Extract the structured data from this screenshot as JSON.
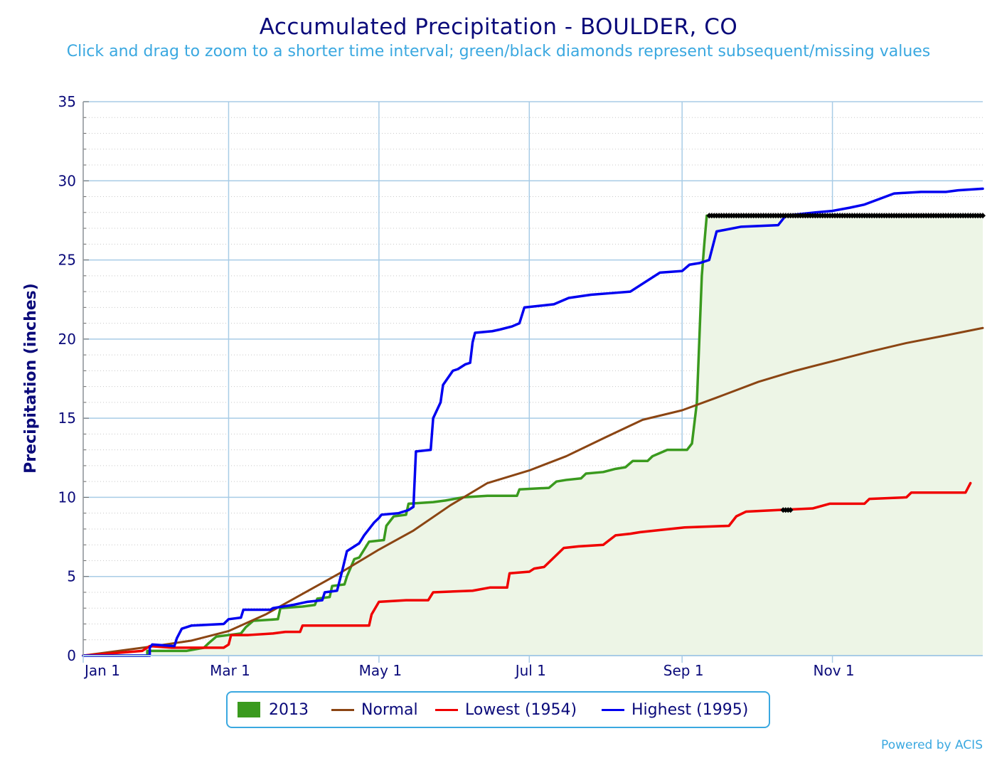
{
  "title": "Accumulated Precipitation - BOULDER, CO",
  "subtitle": "Click and drag to zoom to a shorter time interval; green/black diamonds represent subsequent/missing values",
  "credit": "Powered by ACIS",
  "colors": {
    "obs": "#3a9a1e",
    "obs_fill": "#edf5e6",
    "normal": "#8b4513",
    "lowest": "#f00000",
    "highest": "#0000f0",
    "grid": "#a8cce6",
    "minor_grid": "#c8c8c8",
    "axis_text": "#0a0a7a",
    "marker": "#000000"
  },
  "legend": [
    {
      "label": "2013",
      "key": "obs",
      "kind": "box"
    },
    {
      "label": "Normal",
      "key": "normal",
      "kind": "line"
    },
    {
      "label": "Lowest (1954)",
      "key": "lowest",
      "kind": "line"
    },
    {
      "label": "Highest (1995)",
      "key": "highest",
      "kind": "line"
    }
  ],
  "chart_data": {
    "type": "line",
    "title": "Accumulated Precipitation - BOULDER, CO",
    "xlabel": "",
    "ylabel": "Precipitation (inches)",
    "x_unit": "day of year",
    "xlim": [
      1,
      366
    ],
    "ylim": [
      0,
      35
    ],
    "x_ticks": [
      {
        "label": "Jan 1",
        "day": 1
      },
      {
        "label": "Mar 1",
        "day": 60
      },
      {
        "label": "May 1",
        "day": 121
      },
      {
        "label": "Jul 1",
        "day": 182
      },
      {
        "label": "Sep 1",
        "day": 244
      },
      {
        "label": "Nov 1",
        "day": 305
      }
    ],
    "y_ticks": [
      0,
      5,
      10,
      15,
      20,
      25,
      30,
      35
    ],
    "grid": true,
    "legend_position": "bottom-center",
    "series": [
      {
        "name": "2013",
        "key": "obs",
        "step": true,
        "fill": true,
        "points": [
          [
            1,
            0
          ],
          [
            27,
            0
          ],
          [
            27,
            0.3
          ],
          [
            43,
            0.3
          ],
          [
            50,
            0.5
          ],
          [
            52,
            0.8
          ],
          [
            55,
            1.2
          ],
          [
            60,
            1.3
          ],
          [
            65,
            1.4
          ],
          [
            67,
            1.8
          ],
          [
            70,
            2.2
          ],
          [
            80,
            2.3
          ],
          [
            81,
            3.0
          ],
          [
            90,
            3.1
          ],
          [
            95,
            3.2
          ],
          [
            96,
            3.6
          ],
          [
            101,
            3.7
          ],
          [
            102,
            4.4
          ],
          [
            107,
            4.5
          ],
          [
            108,
            5.0
          ],
          [
            111,
            6.1
          ],
          [
            113,
            6.2
          ],
          [
            117,
            7.2
          ],
          [
            123,
            7.3
          ],
          [
            124,
            8.2
          ],
          [
            127,
            8.8
          ],
          [
            132,
            8.9
          ],
          [
            133,
            9.6
          ],
          [
            143,
            9.7
          ],
          [
            148,
            9.8
          ],
          [
            155,
            10.0
          ],
          [
            165,
            10.1
          ],
          [
            177,
            10.1
          ],
          [
            178,
            10.5
          ],
          [
            190,
            10.6
          ],
          [
            193,
            11.0
          ],
          [
            197,
            11.1
          ],
          [
            203,
            11.2
          ],
          [
            205,
            11.5
          ],
          [
            212,
            11.6
          ],
          [
            217,
            11.8
          ],
          [
            221,
            11.9
          ],
          [
            224,
            12.3
          ],
          [
            230,
            12.3
          ],
          [
            232,
            12.6
          ],
          [
            235,
            12.8
          ],
          [
            238,
            13.0
          ],
          [
            246,
            13.0
          ],
          [
            248,
            13.4
          ],
          [
            250,
            16.0
          ],
          [
            251,
            20.0
          ],
          [
            252,
            24.0
          ],
          [
            253,
            26.0
          ],
          [
            254,
            27.8
          ]
        ]
      },
      {
        "name": "Normal",
        "key": "normal",
        "step": false,
        "points": [
          [
            1,
            0
          ],
          [
            30,
            0.6
          ],
          [
            45,
            0.95
          ],
          [
            60,
            1.55
          ],
          [
            75,
            2.6
          ],
          [
            90,
            3.9
          ],
          [
            105,
            5.2
          ],
          [
            121,
            6.7
          ],
          [
            135,
            7.9
          ],
          [
            150,
            9.5
          ],
          [
            165,
            10.9
          ],
          [
            182,
            11.7
          ],
          [
            197,
            12.6
          ],
          [
            213,
            13.8
          ],
          [
            228,
            14.9
          ],
          [
            244,
            15.5
          ],
          [
            258,
            16.3
          ],
          [
            275,
            17.3
          ],
          [
            290,
            18.0
          ],
          [
            305,
            18.6
          ],
          [
            320,
            19.2
          ],
          [
            335,
            19.75
          ],
          [
            350,
            20.2
          ],
          [
            366,
            20.7
          ]
        ]
      },
      {
        "name": "Lowest (1954)",
        "key": "lowest",
        "step": true,
        "points": [
          [
            1,
            0
          ],
          [
            25,
            0.3
          ],
          [
            28,
            0.6
          ],
          [
            37,
            0.5
          ],
          [
            58,
            0.5
          ],
          [
            60,
            0.7
          ],
          [
            61,
            1.3
          ],
          [
            68,
            1.3
          ],
          [
            78,
            1.4
          ],
          [
            83,
            1.5
          ],
          [
            89,
            1.5
          ],
          [
            90,
            1.9
          ],
          [
            117,
            1.9
          ],
          [
            118,
            2.6
          ],
          [
            121,
            3.4
          ],
          [
            132,
            3.5
          ],
          [
            141,
            3.5
          ],
          [
            143,
            4.0
          ],
          [
            159,
            4.1
          ],
          [
            166,
            4.3
          ],
          [
            173,
            4.3
          ],
          [
            174,
            5.2
          ],
          [
            182,
            5.3
          ],
          [
            184,
            5.5
          ],
          [
            188,
            5.6
          ],
          [
            192,
            6.2
          ],
          [
            196,
            6.8
          ],
          [
            202,
            6.9
          ],
          [
            212,
            7.0
          ],
          [
            217,
            7.6
          ],
          [
            223,
            7.7
          ],
          [
            227,
            7.8
          ],
          [
            245,
            8.1
          ],
          [
            263,
            8.2
          ],
          [
            266,
            8.8
          ],
          [
            270,
            9.1
          ],
          [
            283,
            9.2
          ],
          [
            297,
            9.3
          ],
          [
            304,
            9.6
          ],
          [
            318,
            9.6
          ],
          [
            320,
            9.9
          ],
          [
            335,
            10.0
          ],
          [
            337,
            10.3
          ],
          [
            359,
            10.3
          ],
          [
            361,
            10.9
          ]
        ]
      },
      {
        "name": "Highest (1995)",
        "key": "highest",
        "step": true,
        "points": [
          [
            1,
            0
          ],
          [
            28,
            0
          ],
          [
            28,
            0.5
          ],
          [
            29,
            0.7
          ],
          [
            38,
            0.6
          ],
          [
            39,
            1.1
          ],
          [
            41,
            1.7
          ],
          [
            45,
            1.9
          ],
          [
            58,
            2.0
          ],
          [
            60,
            2.3
          ],
          [
            65,
            2.4
          ],
          [
            66,
            2.9
          ],
          [
            77,
            2.9
          ],
          [
            78,
            3.0
          ],
          [
            82,
            3.1
          ],
          [
            86,
            3.2
          ],
          [
            92,
            3.4
          ],
          [
            98,
            3.5
          ],
          [
            99,
            4.0
          ],
          [
            104,
            4.1
          ],
          [
            106,
            5.3
          ],
          [
            108,
            6.6
          ],
          [
            113,
            7.1
          ],
          [
            115,
            7.6
          ],
          [
            119,
            8.4
          ],
          [
            121,
            8.7
          ],
          [
            122,
            8.9
          ],
          [
            129,
            9.0
          ],
          [
            133,
            9.2
          ],
          [
            135,
            9.4
          ],
          [
            136,
            12.9
          ],
          [
            142,
            13.0
          ],
          [
            143,
            15.0
          ],
          [
            146,
            16.0
          ],
          [
            147,
            17.1
          ],
          [
            151,
            18.0
          ],
          [
            153,
            18.1
          ],
          [
            156,
            18.4
          ],
          [
            158,
            18.5
          ],
          [
            159,
            19.8
          ],
          [
            160,
            20.4
          ],
          [
            167,
            20.5
          ],
          [
            170,
            20.6
          ],
          [
            175,
            20.8
          ],
          [
            178,
            21.0
          ],
          [
            180,
            22.0
          ],
          [
            192,
            22.2
          ],
          [
            198,
            22.6
          ],
          [
            207,
            22.8
          ],
          [
            215,
            22.9
          ],
          [
            223,
            23.0
          ],
          [
            228,
            23.5
          ],
          [
            235,
            24.2
          ],
          [
            244,
            24.3
          ],
          [
            247,
            24.7
          ],
          [
            251,
            24.8
          ],
          [
            255,
            25.0
          ],
          [
            258,
            26.8
          ],
          [
            268,
            27.1
          ],
          [
            283,
            27.2
          ],
          [
            286,
            27.8
          ],
          [
            298,
            28.0
          ],
          [
            305,
            28.1
          ],
          [
            312,
            28.3
          ],
          [
            318,
            28.5
          ],
          [
            330,
            29.2
          ],
          [
            341,
            29.3
          ],
          [
            351,
            29.3
          ],
          [
            356,
            29.4
          ],
          [
            366,
            29.5
          ]
        ]
      }
    ],
    "markers": [
      {
        "note": "black diamonds",
        "key": "marker",
        "series": "2013",
        "y": 27.8,
        "x_from": 255,
        "x_to": 366
      },
      {
        "note": "black diamonds",
        "key": "marker",
        "series": "Lowest (1954)",
        "y": 9.2,
        "x_from": 285,
        "x_to": 288
      }
    ]
  }
}
